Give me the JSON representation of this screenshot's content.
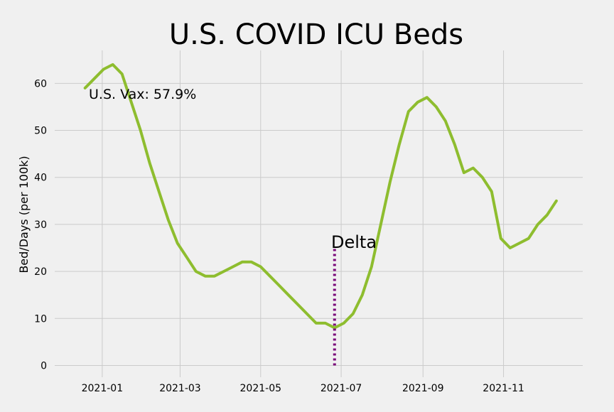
{
  "colors": {
    "background": "#f0f0f0",
    "grid": "#cbcbcb",
    "line": "#8ebd2f",
    "marker": "#7a0a7a"
  },
  "chart_data": {
    "type": "line",
    "title": "U.S. COVID ICU Beds",
    "xlabel": "",
    "ylabel": "Bed/Days (per 100k)",
    "x_tick_labels": [
      "2021-01",
      "2021-03",
      "2021-05",
      "2021-07",
      "2021-09",
      "2021-11"
    ],
    "x_tick_dates": [
      "2021-01-01",
      "2021-03-01",
      "2021-05-01",
      "2021-07-01",
      "2021-09-01",
      "2021-11-01"
    ],
    "y_ticks": [
      0,
      10,
      20,
      30,
      40,
      50,
      60
    ],
    "xlim": [
      "2020-11-26",
      "2021-12-31"
    ],
    "ylim": [
      -2.5,
      67
    ],
    "grid": true,
    "series": [
      {
        "x": [
          "2020-12-19",
          "2020-12-26",
          "2021-01-02",
          "2021-01-09",
          "2021-01-16",
          "2021-01-23",
          "2021-01-30",
          "2021-02-06",
          "2021-02-13",
          "2021-02-20",
          "2021-02-27",
          "2021-03-06",
          "2021-03-13",
          "2021-03-20",
          "2021-03-27",
          "2021-04-03",
          "2021-04-10",
          "2021-04-17",
          "2021-04-24",
          "2021-05-01",
          "2021-05-08",
          "2021-05-15",
          "2021-05-22",
          "2021-05-29",
          "2021-06-05",
          "2021-06-12",
          "2021-06-19",
          "2021-06-26",
          "2021-07-03",
          "2021-07-10",
          "2021-07-17",
          "2021-07-24",
          "2021-07-31",
          "2021-08-07",
          "2021-08-14",
          "2021-08-21",
          "2021-08-28",
          "2021-09-04",
          "2021-09-11",
          "2021-09-18",
          "2021-09-25",
          "2021-10-02",
          "2021-10-09",
          "2021-10-16",
          "2021-10-23",
          "2021-10-30",
          "2021-11-06",
          "2021-11-13",
          "2021-11-20",
          "2021-11-27",
          "2021-12-04",
          "2021-12-11"
        ],
        "values": [
          59,
          61,
          63,
          64,
          62,
          56,
          50,
          43,
          37,
          31,
          26,
          23,
          20,
          19,
          19,
          20,
          21,
          22,
          22,
          21,
          19,
          17,
          15,
          13,
          11,
          9,
          9,
          8,
          9,
          11,
          15,
          21,
          30,
          39,
          47,
          54,
          56,
          57,
          55,
          52,
          47,
          41,
          42,
          40,
          37,
          27,
          25,
          26,
          27,
          30,
          32,
          35
        ]
      }
    ],
    "annotations": {
      "vax_text": "U.S. Vax: 57.9%",
      "delta_label": "Delta",
      "delta_date": "2021-06-26",
      "delta_line_range": [
        0,
        25
      ]
    }
  }
}
